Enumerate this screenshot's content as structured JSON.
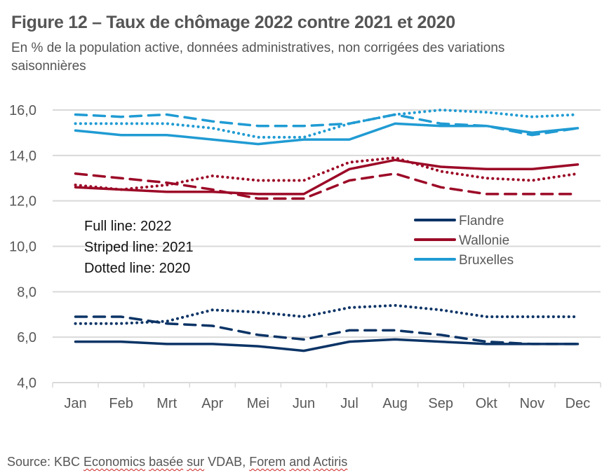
{
  "header": {
    "title": "Figure 12 – Taux de chômage 2022 contre 2021 et 2020",
    "subtitle": "En % de la population active, données administratives, non corrigées des variations saisonnières"
  },
  "source": {
    "prefix": "Source: KBC ",
    "parts": [
      {
        "text": "Economics",
        "squiggle": true
      },
      {
        "text": " ",
        "squiggle": false
      },
      {
        "text": "basée",
        "squiggle": true
      },
      {
        "text": " ",
        "squiggle": false
      },
      {
        "text": "sur",
        "squiggle": true
      },
      {
        "text": "  VDAB, ",
        "squiggle": false
      },
      {
        "text": "Forem",
        "squiggle": true
      },
      {
        "text": " ",
        "squiggle": false
      },
      {
        "text": "and",
        "squiggle": true
      },
      {
        "text": " ",
        "squiggle": false
      },
      {
        "text": "Actiris",
        "squiggle": true
      }
    ]
  },
  "chart_data": {
    "type": "line",
    "title": "Figure 12 – Taux de chômage 2022 contre 2021 et 2020",
    "subtitle": "En % de la population active, données administratives, non corrigées des variations saisonnières",
    "xlabel": "",
    "ylabel": "",
    "categories": [
      "Jan",
      "Feb",
      "Mrt",
      "Apr",
      "Mei",
      "Jun",
      "Jul",
      "Aug",
      "Sep",
      "Okt",
      "Nov",
      "Dec"
    ],
    "ylim": [
      4,
      16
    ],
    "yticks": [
      4,
      6,
      8,
      10,
      12,
      14,
      16
    ],
    "ytick_labels": [
      "4,0",
      "6,0",
      "8,0",
      "10,0",
      "12,0",
      "14,0",
      "16,0"
    ],
    "grid": true,
    "legend": {
      "placement": "center-right",
      "entries": [
        {
          "name": "Flandre",
          "color": "#0c3466"
        },
        {
          "name": "Wallonie",
          "color": "#9c0a27"
        },
        {
          "name": "Bruxelles",
          "color": "#209bd3"
        }
      ]
    },
    "annotations": [
      "Full line: 2022",
      "Striped line: 2021",
      "Dotted line: 2020"
    ],
    "series": [
      {
        "name": "Flandre 2022",
        "region": "Flandre",
        "year": 2022,
        "style": "solid",
        "color": "#0c3466",
        "values": [
          5.8,
          5.8,
          5.7,
          5.7,
          5.6,
          5.4,
          5.8,
          5.9,
          5.8,
          5.7,
          5.7,
          5.7
        ]
      },
      {
        "name": "Flandre 2021",
        "region": "Flandre",
        "year": 2021,
        "style": "dashed",
        "color": "#0c3466",
        "values": [
          6.9,
          6.9,
          6.6,
          6.5,
          6.1,
          5.9,
          6.3,
          6.3,
          6.1,
          5.8,
          5.7,
          5.7
        ]
      },
      {
        "name": "Flandre 2020",
        "region": "Flandre",
        "year": 2020,
        "style": "dotted",
        "color": "#0c3466",
        "values": [
          6.6,
          6.6,
          6.7,
          7.2,
          7.1,
          6.9,
          7.3,
          7.4,
          7.2,
          6.9,
          6.9,
          6.9
        ]
      },
      {
        "name": "Wallonie 2022",
        "region": "Wallonie",
        "year": 2022,
        "style": "solid",
        "color": "#9c0a27",
        "values": [
          12.6,
          12.5,
          12.4,
          12.4,
          12.3,
          12.3,
          13.4,
          13.8,
          13.5,
          13.4,
          13.4,
          13.6
        ]
      },
      {
        "name": "Wallonie 2021",
        "region": "Wallonie",
        "year": 2021,
        "style": "dashed",
        "color": "#9c0a27",
        "values": [
          13.2,
          13.0,
          12.8,
          12.5,
          12.1,
          12.1,
          12.9,
          13.2,
          12.6,
          12.3,
          12.3,
          12.3
        ]
      },
      {
        "name": "Wallonie 2020",
        "region": "Wallonie",
        "year": 2020,
        "style": "dotted",
        "color": "#9c0a27",
        "values": [
          12.7,
          12.5,
          12.7,
          13.1,
          12.9,
          12.9,
          13.7,
          13.9,
          13.3,
          13.0,
          12.9,
          13.2
        ]
      },
      {
        "name": "Bruxelles 2022",
        "region": "Bruxelles",
        "year": 2022,
        "style": "solid",
        "color": "#209bd3",
        "values": [
          15.1,
          14.9,
          14.9,
          14.7,
          14.5,
          14.7,
          14.7,
          15.4,
          15.3,
          15.3,
          15.0,
          15.2
        ]
      },
      {
        "name": "Bruxelles 2021",
        "region": "Bruxelles",
        "year": 2021,
        "style": "dashed",
        "color": "#209bd3",
        "values": [
          15.8,
          15.7,
          15.8,
          15.5,
          15.3,
          15.3,
          15.4,
          15.8,
          15.4,
          15.3,
          14.9,
          15.2
        ]
      },
      {
        "name": "Bruxelles 2020",
        "region": "Bruxelles",
        "year": 2020,
        "style": "dotted",
        "color": "#209bd3",
        "values": [
          15.4,
          15.4,
          15.4,
          15.2,
          14.8,
          14.8,
          15.4,
          15.8,
          16.0,
          15.9,
          15.7,
          15.8
        ]
      }
    ]
  }
}
